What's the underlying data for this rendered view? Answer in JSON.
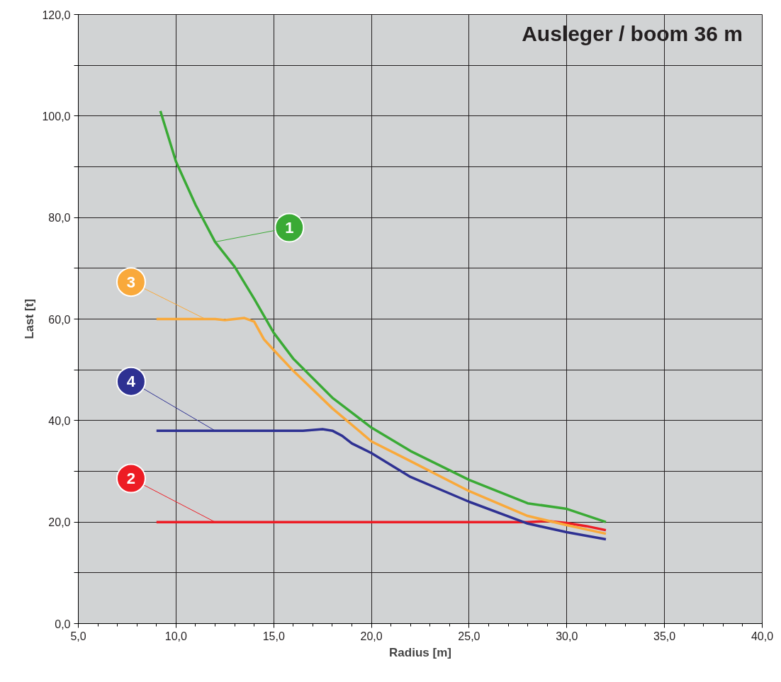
{
  "chart_data": {
    "type": "line",
    "title": "Ausleger / boom 36 m",
    "xlabel": "Radius [m]",
    "ylabel": "Last [t]",
    "xlim": [
      5,
      40
    ],
    "ylim": [
      0,
      120
    ],
    "xticks": [
      {
        "value": 5,
        "label": "5,0"
      },
      {
        "value": 10,
        "label": "10,0"
      },
      {
        "value": 15,
        "label": "15,0"
      },
      {
        "value": 20,
        "label": "20,0"
      },
      {
        "value": 25,
        "label": "25,0"
      },
      {
        "value": 30,
        "label": "30,0"
      },
      {
        "value": 35,
        "label": "35,0"
      },
      {
        "value": 40,
        "label": "40,0"
      }
    ],
    "yticks": [
      {
        "value": 0,
        "label": "0,0"
      },
      {
        "value": 10,
        "label": null
      },
      {
        "value": 20,
        "label": "20,0"
      },
      {
        "value": 30,
        "label": null
      },
      {
        "value": 40,
        "label": "40,0"
      },
      {
        "value": 50,
        "label": null
      },
      {
        "value": 60,
        "label": "60,0"
      },
      {
        "value": 70,
        "label": null
      },
      {
        "value": 80,
        "label": "80,0"
      },
      {
        "value": 90,
        "label": null
      },
      {
        "value": 100,
        "label": "100,0"
      },
      {
        "value": 110,
        "label": null
      },
      {
        "value": 120,
        "label": "120,0"
      }
    ],
    "grid": true,
    "legend": "left",
    "marker": "none",
    "line_style": "solid",
    "series": [
      {
        "name": "1",
        "color": "#3aaa35",
        "x": [
          9.2,
          10,
          11,
          12,
          13,
          14,
          15,
          16,
          18,
          20,
          22,
          25,
          28,
          30,
          32
        ],
        "values": [
          101,
          91,
          82.5,
          75.2,
          70.3,
          64,
          57.3,
          52.2,
          44.5,
          38.6,
          34,
          28.3,
          23.7,
          22.6,
          20
        ]
      },
      {
        "name": "2",
        "color": "#ed1c24",
        "x": [
          9,
          15,
          20,
          25,
          28,
          29,
          30,
          31,
          32
        ],
        "values": [
          20,
          20,
          20,
          20,
          20,
          20.2,
          19.8,
          19.2,
          18.4
        ]
      },
      {
        "name": "3",
        "color": "#f9a93b",
        "x": [
          9,
          12,
          12.5,
          13.5,
          14,
          14.5,
          15,
          16,
          18,
          20,
          22,
          25,
          28,
          30,
          32
        ],
        "values": [
          60,
          60,
          59.8,
          60.2,
          59.5,
          56,
          53.9,
          49.8,
          42.4,
          35.9,
          32,
          26.1,
          21.2,
          19.4,
          17.7
        ]
      },
      {
        "name": "4",
        "color": "#2e3192",
        "x": [
          9,
          12,
          16.5,
          17.5,
          18,
          18.5,
          19,
          20,
          22,
          25,
          28,
          30,
          32
        ],
        "values": [
          38,
          38,
          38,
          38.3,
          38,
          37,
          35.5,
          33.6,
          28.9,
          24,
          19.7,
          18,
          16.6
        ]
      }
    ]
  }
}
